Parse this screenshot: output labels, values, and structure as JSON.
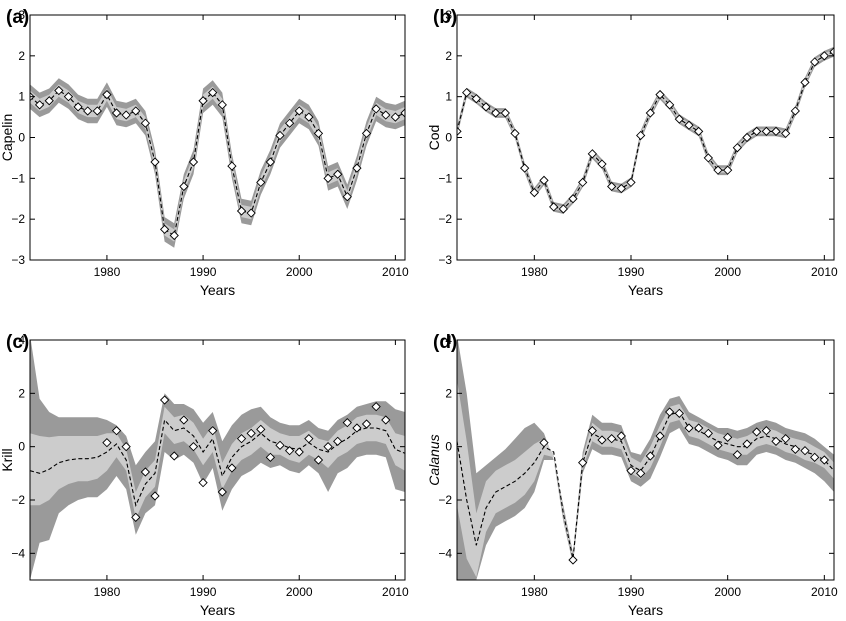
{
  "chart_data": [
    {
      "panel_label": "(a)",
      "type": "line",
      "xlabel": "Years",
      "ylabel": "Capelin",
      "ylabel_italic": false,
      "xlim": [
        1972,
        2011
      ],
      "ylim": [
        -3,
        3
      ],
      "xticks": [
        "1980",
        "1990",
        "2000",
        "2010"
      ],
      "yticks": [
        "3",
        "2",
        "1",
        "0",
        "−1",
        "−2",
        "−3"
      ],
      "band_outer": 0.3,
      "band_inner": 0.15,
      "colors": {
        "outer_band": "#9a9a9a",
        "inner_band": "#cccccc",
        "line": "#000000",
        "marker": "#ffffff"
      },
      "x": [
        1972,
        1973,
        1974,
        1975,
        1976,
        1977,
        1978,
        1979,
        1980,
        1981,
        1982,
        1983,
        1984,
        1985,
        1986,
        1987,
        1988,
        1989,
        1990,
        1991,
        1992,
        1993,
        1994,
        1995,
        1996,
        1997,
        1998,
        1999,
        2000,
        2001,
        2002,
        2003,
        2004,
        2005,
        2006,
        2007,
        2008,
        2009,
        2010,
        2011
      ],
      "y": [
        1.0,
        0.8,
        0.9,
        1.15,
        1.0,
        0.75,
        0.65,
        0.65,
        1.05,
        0.6,
        0.55,
        0.65,
        0.35,
        -0.6,
        -2.25,
        -2.4,
        -1.2,
        -0.6,
        0.9,
        1.1,
        0.8,
        -0.7,
        -1.8,
        -1.85,
        -1.1,
        -0.6,
        0.05,
        0.35,
        0.65,
        0.5,
        0.1,
        -1.0,
        -0.9,
        -1.45,
        -0.75,
        0.1,
        0.7,
        0.55,
        0.5,
        0.6
      ]
    },
    {
      "panel_label": "(b)",
      "type": "line",
      "xlabel": "Years",
      "ylabel": "Cod",
      "ylabel_italic": false,
      "xlim": [
        1972,
        2011
      ],
      "ylim": [
        -3,
        3
      ],
      "xticks": [
        "1980",
        "1990",
        "2000",
        "2010"
      ],
      "yticks": [
        "3",
        "2",
        "1",
        "0",
        "−1",
        "−2",
        "−3"
      ],
      "band_outer": 0.12,
      "band_inner": 0.06,
      "colors": {
        "outer_band": "#9a9a9a",
        "inner_band": "#cccccc",
        "line": "#000000",
        "marker": "#ffffff"
      },
      "x": [
        1972,
        1973,
        1974,
        1975,
        1976,
        1977,
        1978,
        1979,
        1980,
        1981,
        1982,
        1983,
        1984,
        1985,
        1986,
        1987,
        1988,
        1989,
        1990,
        1991,
        1992,
        1993,
        1994,
        1995,
        1996,
        1997,
        1998,
        1999,
        2000,
        2001,
        2002,
        2003,
        2004,
        2005,
        2006,
        2007,
        2008,
        2009,
        2010,
        2011
      ],
      "y": [
        0.15,
        1.1,
        0.95,
        0.75,
        0.6,
        0.6,
        0.1,
        -0.75,
        -1.35,
        -1.05,
        -1.7,
        -1.75,
        -1.5,
        -1.1,
        -0.4,
        -0.65,
        -1.2,
        -1.25,
        -1.1,
        0.05,
        0.6,
        1.05,
        0.8,
        0.45,
        0.3,
        0.15,
        -0.5,
        -0.8,
        -0.8,
        -0.25,
        0.0,
        0.15,
        0.15,
        0.15,
        0.1,
        0.65,
        1.35,
        1.85,
        2.0,
        2.1
      ]
    },
    {
      "panel_label": "(c)",
      "type": "line",
      "xlabel": "Years",
      "ylabel": "Krill",
      "ylabel_italic": false,
      "xlim": [
        1972,
        2011
      ],
      "ylim": [
        -5,
        4
      ],
      "xticks": [
        "1980",
        "1990",
        "2000",
        "2010"
      ],
      "yticks": [
        "4",
        "2",
        "0",
        "−2",
        "−4"
      ],
      "colors": {
        "outer_band": "#9a9a9a",
        "inner_band": "#cccccc",
        "line": "#000000",
        "marker": "#ffffff"
      },
      "line_x": [
        1972,
        1973,
        1974,
        1975,
        1976,
        1977,
        1978,
        1979,
        1980,
        1981,
        1982,
        1983,
        1984,
        1985,
        1986,
        1987,
        1988,
        1989,
        1990,
        1991,
        1992,
        1993,
        1994,
        1995,
        1996,
        1997,
        1998,
        1999,
        2000,
        2001,
        2002,
        2003,
        2004,
        2005,
        2006,
        2007,
        2008,
        2009,
        2010,
        2011
      ],
      "line_y": [
        -0.9,
        -1.0,
        -0.85,
        -0.6,
        -0.5,
        -0.45,
        -0.45,
        -0.4,
        -0.2,
        0.1,
        -0.5,
        -2.2,
        -1.4,
        -1.0,
        1.0,
        0.6,
        0.7,
        0.4,
        -0.2,
        0.3,
        -1.1,
        -0.4,
        0.0,
        0.2,
        0.5,
        0.2,
        0.1,
        -0.05,
        -0.1,
        0.15,
        -0.1,
        -0.2,
        0.1,
        0.3,
        0.6,
        0.7,
        0.7,
        0.6,
        -0.1,
        -0.25
      ],
      "band_outer_upper": [
        4.2,
        1.8,
        1.3,
        1.1,
        1.1,
        1.1,
        1.1,
        1.1,
        1.0,
        0.8,
        0.4,
        -0.7,
        -0.2,
        0.2,
        2.0,
        1.6,
        1.6,
        1.4,
        0.9,
        1.3,
        0.2,
        0.8,
        1.2,
        1.4,
        1.5,
        1.1,
        0.9,
        0.8,
        0.8,
        1.0,
        0.7,
        0.6,
        1.0,
        1.2,
        1.5,
        1.6,
        1.7,
        1.7,
        1.4,
        1.3
      ],
      "band_outer_lower": [
        -5.0,
        -3.6,
        -3.5,
        -2.5,
        -2.2,
        -2.0,
        -1.9,
        -1.9,
        -1.6,
        -1.1,
        -1.6,
        -3.3,
        -2.5,
        -2.2,
        -0.2,
        -0.5,
        -0.3,
        -0.6,
        -1.4,
        -0.8,
        -2.4,
        -1.6,
        -1.1,
        -0.9,
        -0.6,
        -0.8,
        -0.7,
        -0.9,
        -1.0,
        -0.7,
        -1.0,
        -1.7,
        -1.0,
        -0.8,
        -0.4,
        -0.3,
        -0.3,
        -0.4,
        -1.6,
        -1.7
      ],
      "band_inner_upper": [
        0.5,
        0.4,
        0.35,
        0.4,
        0.4,
        0.4,
        0.4,
        0.4,
        0.5,
        0.5,
        -0.1,
        -1.7,
        -0.9,
        -0.5,
        1.5,
        1.1,
        1.2,
        0.9,
        0.3,
        0.8,
        -0.6,
        0.1,
        0.5,
        0.7,
        1.0,
        0.7,
        0.5,
        0.4,
        0.4,
        0.6,
        0.3,
        0.2,
        0.6,
        0.8,
        1.1,
        1.2,
        1.2,
        1.1,
        0.5,
        0.4
      ],
      "band_inner_lower": [
        -2.2,
        -2.2,
        -2.0,
        -1.6,
        -1.4,
        -1.3,
        -1.3,
        -1.2,
        -0.9,
        -0.4,
        -0.9,
        -2.7,
        -1.9,
        -1.5,
        0.5,
        0.1,
        0.2,
        -0.1,
        -0.7,
        -0.2,
        -1.6,
        -0.9,
        -0.5,
        -0.3,
        0.0,
        -0.3,
        -0.3,
        -0.5,
        -0.6,
        -0.3,
        -0.5,
        -0.8,
        -0.4,
        -0.2,
        0.1,
        0.2,
        0.2,
        0.1,
        -0.7,
        -0.9
      ],
      "markers_x": [
        1980,
        1981,
        1982,
        1983,
        1984,
        1985,
        1986,
        1987,
        1988,
        1989,
        1990,
        1991,
        1992,
        1993,
        1994,
        1995,
        1996,
        1997,
        1998,
        1999,
        2000,
        2001,
        2002,
        2003,
        2004,
        2005,
        2006,
        2007,
        2008,
        2009
      ],
      "markers_y": [
        0.15,
        0.6,
        0.0,
        -2.65,
        -0.95,
        -1.85,
        1.75,
        -0.35,
        1.0,
        0.0,
        -1.35,
        0.6,
        -1.7,
        -0.8,
        0.3,
        0.5,
        0.65,
        -0.4,
        0.05,
        -0.15,
        -0.2,
        0.3,
        -0.5,
        0.0,
        0.2,
        0.9,
        0.7,
        0.85,
        1.5,
        1.0
      ]
    },
    {
      "panel_label": "(d)",
      "type": "line",
      "xlabel": "Years",
      "ylabel": "Calanus",
      "ylabel_italic": true,
      "xlim": [
        1972,
        2011
      ],
      "ylim": [
        -5,
        4
      ],
      "xticks": [
        "1980",
        "1990",
        "2000",
        "2010"
      ],
      "yticks": [
        "4",
        "2",
        "0",
        "−2",
        "−4"
      ],
      "colors": {
        "outer_band": "#9a9a9a",
        "inner_band": "#cccccc",
        "line": "#000000",
        "marker": "#ffffff"
      },
      "line_x": [
        1972,
        1973,
        1974,
        1975,
        1976,
        1977,
        1978,
        1979,
        1980,
        1981,
        1982,
        1983,
        1984,
        1985,
        1986,
        1987,
        1988,
        1989,
        1990,
        1991,
        1992,
        1993,
        1994,
        1995,
        1996,
        1997,
        1998,
        1999,
        2000,
        2001,
        2002,
        2003,
        2004,
        2005,
        2006,
        2007,
        2008,
        2009,
        2010,
        2011
      ],
      "line_y": [
        0.2,
        -2.0,
        -3.7,
        -2.3,
        -1.7,
        -1.5,
        -1.3,
        -1.0,
        -0.6,
        0.0,
        -0.2,
        -2.5,
        -4.2,
        -0.6,
        0.5,
        0.3,
        0.3,
        0.2,
        -0.7,
        -0.9,
        -0.4,
        0.4,
        1.2,
        1.3,
        0.7,
        0.6,
        0.4,
        0.2,
        0.1,
        0.0,
        0.0,
        0.3,
        0.4,
        0.3,
        0.1,
        0.0,
        -0.2,
        -0.3,
        -0.5,
        -0.9
      ],
      "band_outer_upper": [
        4.2,
        2.0,
        -1.0,
        -0.7,
        -0.4,
        -0.1,
        0.3,
        0.7,
        0.9,
        0.5,
        -0.5,
        -2.2,
        -4.0,
        -0.2,
        1.2,
        0.9,
        0.9,
        0.8,
        -0.2,
        -0.3,
        0.3,
        1.2,
        1.8,
        1.9,
        1.3,
        1.1,
        0.9,
        0.7,
        0.7,
        0.6,
        0.7,
        0.9,
        1.0,
        0.9,
        0.7,
        0.6,
        0.5,
        0.3,
        0.0,
        -0.3
      ],
      "band_outer_lower": [
        -5.0,
        -5.0,
        -5.0,
        -3.7,
        -3.0,
        -2.8,
        -2.6,
        -2.3,
        -1.7,
        -0.5,
        -0.5,
        -2.8,
        -4.4,
        -1.0,
        -0.1,
        -0.3,
        -0.3,
        -0.4,
        -1.3,
        -1.5,
        -1.2,
        -0.4,
        0.5,
        0.7,
        0.1,
        0.0,
        -0.2,
        -0.4,
        -0.5,
        -0.7,
        -0.7,
        -0.3,
        -0.2,
        -0.3,
        -0.5,
        -0.6,
        -0.8,
        -1.0,
        -1.3,
        -1.7
      ],
      "band_inner_upper": [
        2.5,
        0.2,
        -2.5,
        -1.3,
        -0.9,
        -0.7,
        -0.5,
        -0.2,
        0.1,
        0.3,
        -0.3,
        -2.3,
        -4.1,
        -0.4,
        0.9,
        0.6,
        0.6,
        0.5,
        -0.4,
        -0.6,
        0.0,
        0.8,
        1.5,
        1.6,
        1.0,
        0.9,
        0.7,
        0.5,
        0.4,
        0.3,
        0.4,
        0.6,
        0.7,
        0.6,
        0.4,
        0.3,
        0.2,
        0.0,
        -0.2,
        -0.6
      ],
      "band_inner_lower": [
        -2.2,
        -4.2,
        -4.9,
        -3.2,
        -2.5,
        -2.3,
        -2.1,
        -1.8,
        -1.3,
        -0.3,
        -0.4,
        -2.7,
        -4.3,
        -0.8,
        0.2,
        0.0,
        0.0,
        -0.1,
        -1.0,
        -1.2,
        -0.8,
        0.0,
        0.9,
        1.0,
        0.4,
        0.3,
        0.1,
        -0.1,
        -0.2,
        -0.3,
        -0.3,
        0.0,
        0.1,
        0.0,
        -0.2,
        -0.3,
        -0.5,
        -0.6,
        -0.8,
        -1.2
      ],
      "markers_x": [
        1981,
        1984,
        1985,
        1986,
        1987,
        1988,
        1989,
        1990,
        1991,
        1992,
        1993,
        1994,
        1995,
        1996,
        1997,
        1998,
        1999,
        2000,
        2001,
        2002,
        2003,
        2004,
        2005,
        2006,
        2007,
        2008,
        2009,
        2010
      ],
      "markers_y": [
        0.15,
        -4.25,
        -0.6,
        0.6,
        0.25,
        0.3,
        0.4,
        -0.9,
        -1.0,
        -0.35,
        0.4,
        1.3,
        1.25,
        0.7,
        0.7,
        0.5,
        0.05,
        0.35,
        -0.3,
        0.1,
        0.55,
        0.6,
        0.2,
        0.3,
        -0.1,
        -0.15,
        -0.4,
        -0.5
      ]
    }
  ]
}
